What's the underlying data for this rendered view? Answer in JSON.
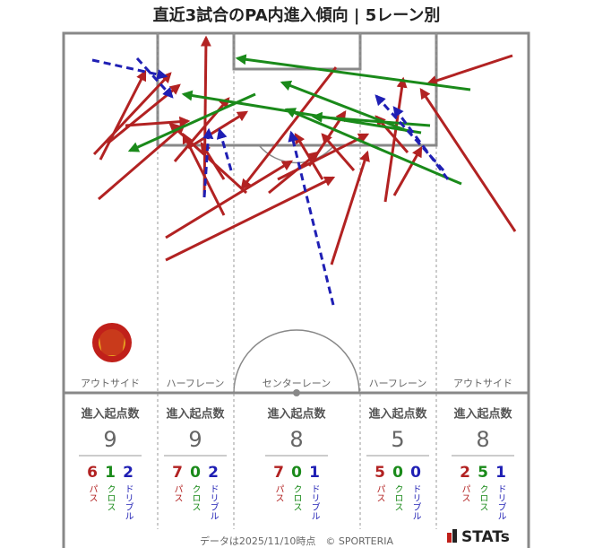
{
  "title": "直近3試合のPA内進入傾向 | 5レーン別",
  "lanes": [
    {
      "name": "アウトサイド",
      "stat_label": "進入起点数",
      "total": 9,
      "breakdown": [
        {
          "value": 6,
          "label": "パス"
        },
        {
          "value": 1,
          "label": "クロス"
        },
        {
          "value": 2,
          "label": "ドリブル"
        }
      ]
    },
    {
      "name": "ハーフレーン",
      "stat_label": "進入起点数",
      "total": 9,
      "breakdown": [
        {
          "value": 7,
          "label": "パス"
        },
        {
          "value": 0,
          "label": "クロス"
        },
        {
          "value": 2,
          "label": "ドリブル"
        }
      ]
    },
    {
      "name": "センターレーン",
      "stat_label": "進入起点数",
      "total": 8,
      "breakdown": [
        {
          "value": 7,
          "label": "パス"
        },
        {
          "value": 0,
          "label": "クロス"
        },
        {
          "value": 1,
          "label": "ドリブル"
        }
      ]
    },
    {
      "name": "ハーフレーン",
      "stat_label": "進入起点数",
      "total": 5,
      "breakdown": [
        {
          "value": 5,
          "label": "パス"
        },
        {
          "value": 0,
          "label": "クロス"
        },
        {
          "value": 0,
          "label": "ドリブル"
        }
      ]
    },
    {
      "name": "アウトサイド",
      "stat_label": "進入起点数",
      "total": 8,
      "breakdown": [
        {
          "value": 2,
          "label": "パス"
        },
        {
          "value": 5,
          "label": "クロス"
        },
        {
          "value": 1,
          "label": "ドリブル"
        }
      ]
    }
  ],
  "footer": "データは2025/11/10時点　© SPORTERIA",
  "brand": "STATs"
}
